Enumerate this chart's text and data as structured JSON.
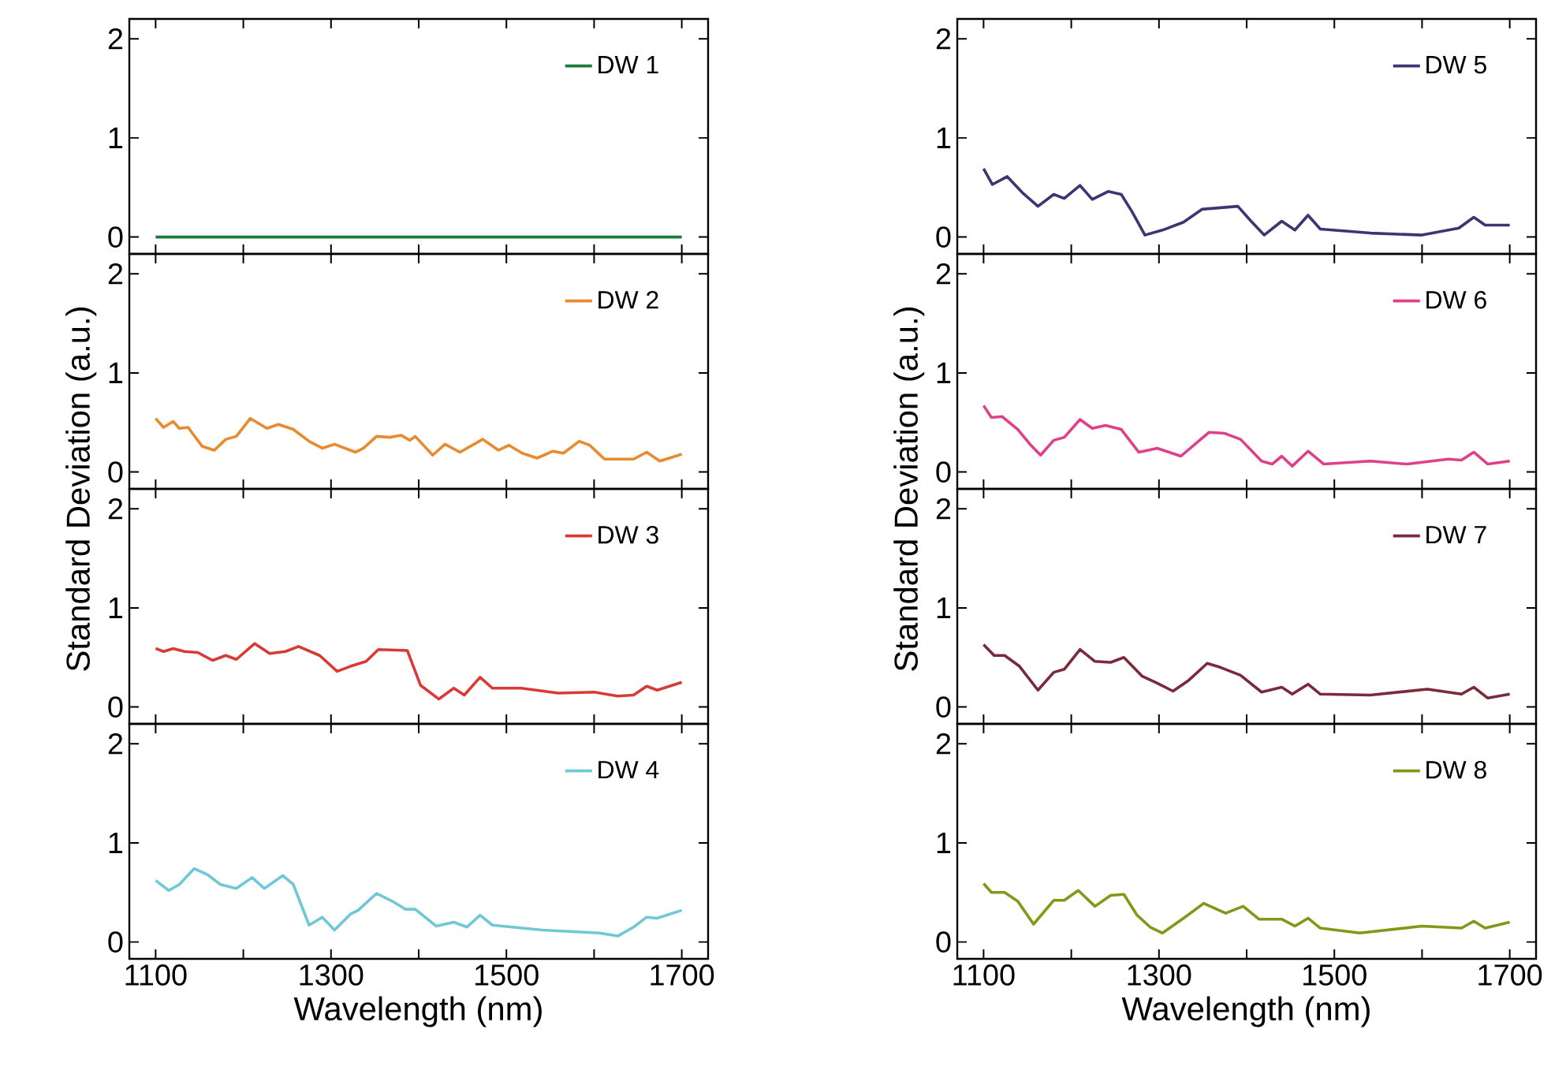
{
  "chart_data": [
    {
      "type": "line",
      "xlim": [
        1070,
        1730
      ],
      "ylim": [
        -0.17,
        2.2
      ],
      "xticks": [
        {
          "value": 1100,
          "label": null
        },
        {
          "value": 1200,
          "label": null
        },
        {
          "value": 1300,
          "label": null
        },
        {
          "value": 1400,
          "label": null
        },
        {
          "value": 1500,
          "label": null
        },
        {
          "value": 1600,
          "label": null
        },
        {
          "value": 1700,
          "label": null
        }
      ],
      "yticks": [
        0,
        1,
        2
      ],
      "tick_labels": "y",
      "legend": "top right",
      "series": [
        {
          "name": "DW 1",
          "color": "#1a7a3c",
          "x": [
            1100,
            1400,
            1700
          ],
          "values": [
            0,
            0,
            0
          ]
        }
      ]
    },
    {
      "type": "line",
      "xlim": [
        1070,
        1730
      ],
      "ylim": [
        -0.17,
        2.2
      ],
      "xticks": [
        {
          "value": 1100,
          "label": null
        },
        {
          "value": 1200,
          "label": null
        },
        {
          "value": 1300,
          "label": null
        },
        {
          "value": 1400,
          "label": null
        },
        {
          "value": 1500,
          "label": null
        },
        {
          "value": 1600,
          "label": null
        },
        {
          "value": 1700,
          "label": null
        }
      ],
      "yticks": [
        0,
        1,
        2
      ],
      "tick_labels": "y",
      "legend": "top right",
      "ylabel": "Standard Deviation (a.u.)",
      "series": [
        {
          "name": "DW 2",
          "color": "#e88a2e",
          "x": [
            1100,
            1109,
            1120,
            1127,
            1137,
            1153,
            1167,
            1180,
            1192,
            1208,
            1227,
            1240,
            1257,
            1275,
            1290,
            1304,
            1328,
            1337,
            1352,
            1367,
            1380,
            1390,
            1396,
            1416,
            1430,
            1447,
            1473,
            1491,
            1503,
            1518,
            1535,
            1553,
            1565,
            1583,
            1595,
            1612,
            1645,
            1660,
            1675,
            1700
          ],
          "values": [
            0.54,
            0.45,
            0.51,
            0.44,
            0.45,
            0.26,
            0.22,
            0.33,
            0.36,
            0.54,
            0.44,
            0.48,
            0.43,
            0.31,
            0.24,
            0.28,
            0.2,
            0.24,
            0.36,
            0.35,
            0.37,
            0.32,
            0.36,
            0.17,
            0.28,
            0.2,
            0.33,
            0.22,
            0.27,
            0.19,
            0.14,
            0.21,
            0.19,
            0.31,
            0.27,
            0.13,
            0.13,
            0.2,
            0.11,
            0.18
          ]
        }
      ]
    },
    {
      "type": "line",
      "xlim": [
        1070,
        1730
      ],
      "ylim": [
        -0.17,
        2.2
      ],
      "xticks": [
        {
          "value": 1100,
          "label": null
        },
        {
          "value": 1200,
          "label": null
        },
        {
          "value": 1300,
          "label": null
        },
        {
          "value": 1400,
          "label": null
        },
        {
          "value": 1500,
          "label": null
        },
        {
          "value": 1600,
          "label": null
        },
        {
          "value": 1700,
          "label": null
        }
      ],
      "yticks": [
        0,
        1,
        2
      ],
      "tick_labels": "y",
      "legend": "top right",
      "series": [
        {
          "name": "DW 3",
          "color": "#d93a35",
          "x": [
            1100,
            1109,
            1120,
            1133,
            1148,
            1165,
            1180,
            1192,
            1213,
            1230,
            1248,
            1263,
            1287,
            1307,
            1322,
            1340,
            1354,
            1387,
            1402,
            1423,
            1440,
            1452,
            1470,
            1484,
            1517,
            1559,
            1600,
            1627,
            1645,
            1660,
            1672,
            1700
          ],
          "values": [
            0.59,
            0.56,
            0.59,
            0.56,
            0.55,
            0.47,
            0.52,
            0.48,
            0.64,
            0.54,
            0.56,
            0.61,
            0.52,
            0.36,
            0.41,
            0.46,
            0.58,
            0.57,
            0.22,
            0.08,
            0.19,
            0.12,
            0.3,
            0.19,
            0.19,
            0.14,
            0.15,
            0.11,
            0.12,
            0.21,
            0.17,
            0.25
          ]
        }
      ]
    },
    {
      "type": "line",
      "xlim": [
        1070,
        1730
      ],
      "ylim": [
        -0.17,
        2.2
      ],
      "xticks": [
        1100,
        {
          "value": 1200,
          "label": null
        },
        1300,
        {
          "value": 1400,
          "label": null
        },
        1500,
        {
          "value": 1600,
          "label": null
        },
        1700
      ],
      "yticks": [
        0,
        1,
        2
      ],
      "legend": "top right",
      "xlabel": "Wavelength (nm)",
      "series": [
        {
          "name": "DW 4",
          "color": "#6ec8d6",
          "x": [
            1100,
            1115,
            1127,
            1144,
            1159,
            1174,
            1192,
            1210,
            1224,
            1245,
            1257,
            1275,
            1290,
            1304,
            1322,
            1331,
            1352,
            1370,
            1385,
            1396,
            1420,
            1440,
            1455,
            1470,
            1484,
            1541,
            1606,
            1627,
            1645,
            1660,
            1672,
            1700
          ],
          "values": [
            0.62,
            0.52,
            0.58,
            0.74,
            0.68,
            0.58,
            0.54,
            0.65,
            0.54,
            0.67,
            0.58,
            0.17,
            0.25,
            0.12,
            0.28,
            0.32,
            0.49,
            0.41,
            0.33,
            0.33,
            0.16,
            0.2,
            0.15,
            0.27,
            0.17,
            0.12,
            0.09,
            0.06,
            0.15,
            0.25,
            0.24,
            0.32
          ]
        }
      ]
    },
    {
      "type": "line",
      "xlim": [
        1070,
        1730
      ],
      "ylim": [
        -0.17,
        2.2
      ],
      "xticks": [
        {
          "value": 1100,
          "label": null
        },
        {
          "value": 1200,
          "label": null
        },
        {
          "value": 1300,
          "label": null
        },
        {
          "value": 1400,
          "label": null
        },
        {
          "value": 1500,
          "label": null
        },
        {
          "value": 1600,
          "label": null
        },
        {
          "value": 1700,
          "label": null
        }
      ],
      "yticks": [
        0,
        1,
        2
      ],
      "tick_labels": "y",
      "legend": "top right",
      "series": [
        {
          "name": "DW 5",
          "color": "#3d3573",
          "x": [
            1100,
            1110,
            1127,
            1144,
            1162,
            1180,
            1192,
            1210,
            1224,
            1242,
            1257,
            1269,
            1284,
            1304,
            1328,
            1349,
            1390,
            1405,
            1420,
            1440,
            1455,
            1470,
            1484,
            1541,
            1600,
            1642,
            1659,
            1672,
            1700
          ],
          "values": [
            0.69,
            0.53,
            0.61,
            0.45,
            0.31,
            0.43,
            0.39,
            0.52,
            0.38,
            0.46,
            0.43,
            0.26,
            0.02,
            0.07,
            0.15,
            0.28,
            0.31,
            0.16,
            0.02,
            0.16,
            0.07,
            0.22,
            0.08,
            0.04,
            0.02,
            0.09,
            0.2,
            0.12,
            0.12
          ]
        }
      ]
    },
    {
      "type": "line",
      "xlim": [
        1070,
        1730
      ],
      "ylim": [
        -0.17,
        2.2
      ],
      "xticks": [
        {
          "value": 1100,
          "label": null
        },
        {
          "value": 1200,
          "label": null
        },
        {
          "value": 1300,
          "label": null
        },
        {
          "value": 1400,
          "label": null
        },
        {
          "value": 1500,
          "label": null
        },
        {
          "value": 1600,
          "label": null
        },
        {
          "value": 1700,
          "label": null
        }
      ],
      "yticks": [
        0,
        1,
        2
      ],
      "tick_labels": "y",
      "legend": "top right",
      "ylabel": "Standard Deviation (a.u.)",
      "series": [
        {
          "name": "DW 6",
          "color": "#e0408a",
          "x": [
            1100,
            1109,
            1121,
            1139,
            1153,
            1165,
            1180,
            1192,
            1210,
            1224,
            1239,
            1257,
            1277,
            1298,
            1325,
            1357,
            1375,
            1393,
            1417,
            1429,
            1440,
            1452,
            1470,
            1488,
            1541,
            1583,
            1630,
            1645,
            1659,
            1675,
            1700
          ],
          "values": [
            0.67,
            0.55,
            0.56,
            0.43,
            0.28,
            0.17,
            0.32,
            0.35,
            0.53,
            0.44,
            0.47,
            0.43,
            0.2,
            0.24,
            0.16,
            0.4,
            0.39,
            0.33,
            0.11,
            0.08,
            0.16,
            0.06,
            0.21,
            0.08,
            0.11,
            0.08,
            0.13,
            0.12,
            0.2,
            0.08,
            0.11
          ]
        }
      ]
    },
    {
      "type": "line",
      "xlim": [
        1070,
        1730
      ],
      "ylim": [
        -0.17,
        2.2
      ],
      "xticks": [
        {
          "value": 1100,
          "label": null
        },
        {
          "value": 1200,
          "label": null
        },
        {
          "value": 1300,
          "label": null
        },
        {
          "value": 1400,
          "label": null
        },
        {
          "value": 1500,
          "label": null
        },
        {
          "value": 1600,
          "label": null
        },
        {
          "value": 1700,
          "label": null
        }
      ],
      "yticks": [
        0,
        1,
        2
      ],
      "tick_labels": "y",
      "legend": "top right",
      "series": [
        {
          "name": "DW 7",
          "color": "#7a2a3a",
          "x": [
            1100,
            1112,
            1124,
            1141,
            1162,
            1180,
            1192,
            1210,
            1227,
            1245,
            1260,
            1281,
            1298,
            1316,
            1334,
            1355,
            1370,
            1393,
            1417,
            1440,
            1452,
            1470,
            1484,
            1541,
            1606,
            1645,
            1659,
            1675,
            1700
          ],
          "values": [
            0.63,
            0.52,
            0.52,
            0.41,
            0.17,
            0.35,
            0.38,
            0.58,
            0.46,
            0.45,
            0.5,
            0.31,
            0.24,
            0.16,
            0.27,
            0.44,
            0.4,
            0.32,
            0.15,
            0.2,
            0.13,
            0.23,
            0.13,
            0.12,
            0.18,
            0.13,
            0.2,
            0.09,
            0.13
          ]
        }
      ]
    },
    {
      "type": "line",
      "xlim": [
        1070,
        1730
      ],
      "ylim": [
        -0.17,
        2.2
      ],
      "xticks": [
        1100,
        {
          "value": 1200,
          "label": null
        },
        1300,
        {
          "value": 1400,
          "label": null
        },
        1500,
        {
          "value": 1600,
          "label": null
        },
        1700
      ],
      "yticks": [
        0,
        1,
        2
      ],
      "legend": "top right",
      "xlabel": "Wavelength (nm)",
      "series": [
        {
          "name": "DW 8",
          "color": "#7f9a18",
          "x": [
            1100,
            1109,
            1124,
            1139,
            1157,
            1180,
            1192,
            1208,
            1227,
            1245,
            1260,
            1275,
            1290,
            1304,
            1328,
            1351,
            1376,
            1396,
            1414,
            1440,
            1455,
            1470,
            1484,
            1529,
            1600,
            1645,
            1659,
            1672,
            1700
          ],
          "values": [
            0.59,
            0.5,
            0.5,
            0.41,
            0.18,
            0.42,
            0.42,
            0.52,
            0.36,
            0.47,
            0.48,
            0.27,
            0.15,
            0.09,
            0.24,
            0.39,
            0.29,
            0.36,
            0.23,
            0.23,
            0.16,
            0.24,
            0.14,
            0.09,
            0.16,
            0.14,
            0.21,
            0.14,
            0.2
          ]
        }
      ]
    }
  ]
}
